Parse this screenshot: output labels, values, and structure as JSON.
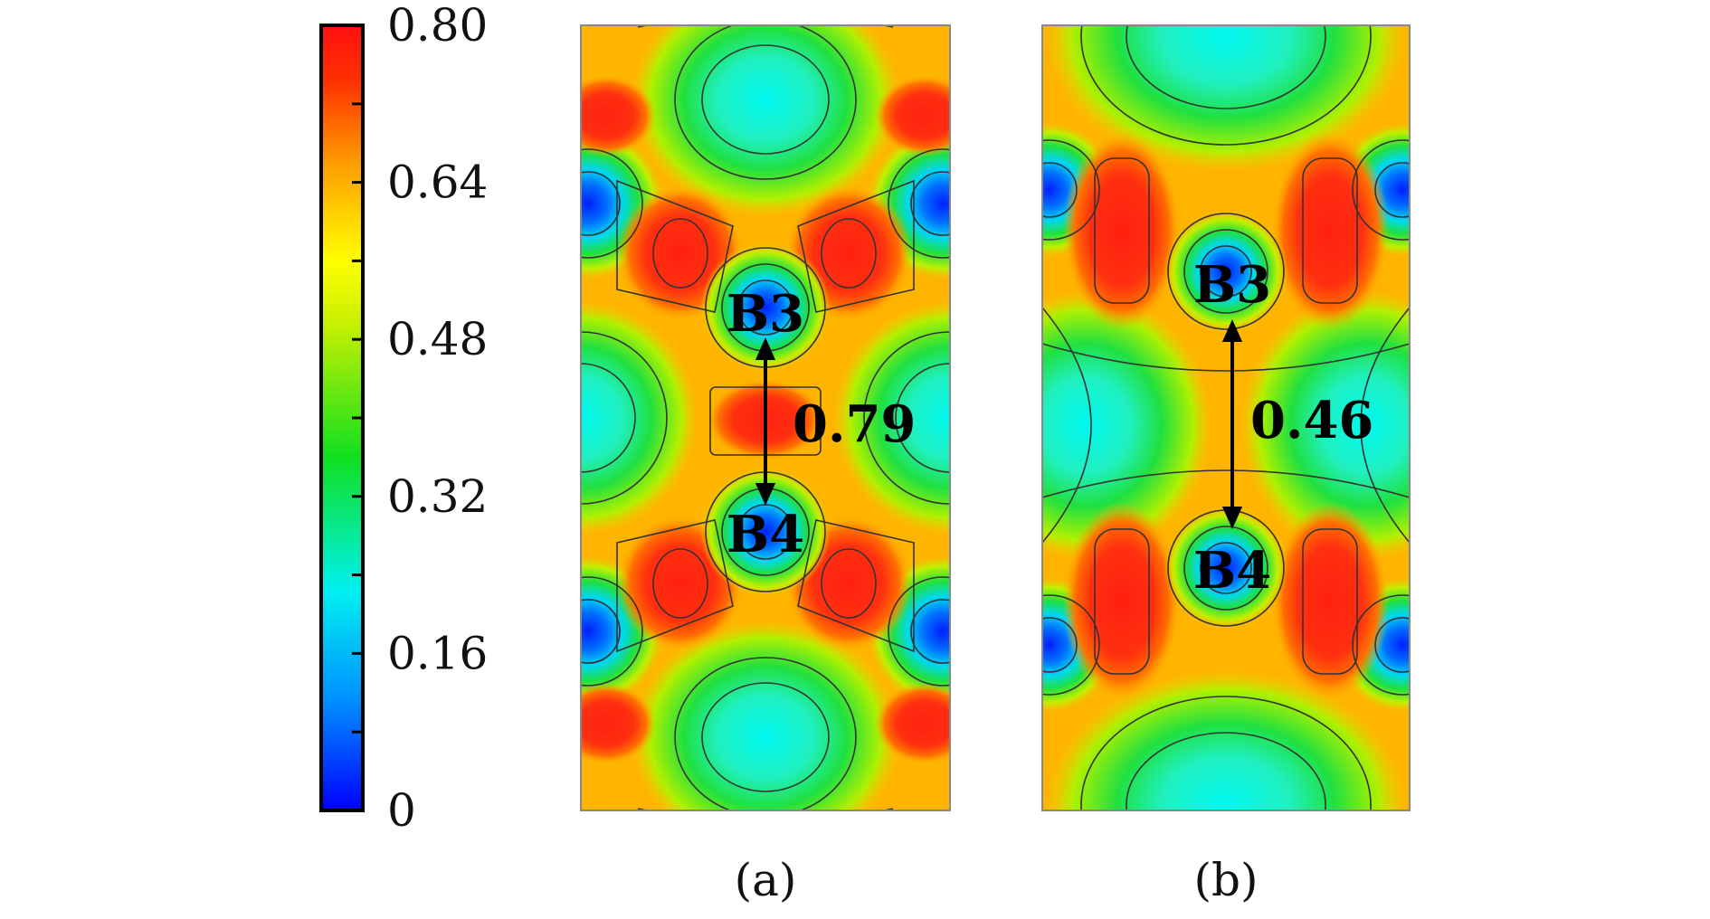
{
  "chart_data": {
    "type": "heatmap",
    "title": "",
    "colorbar": {
      "min": 0,
      "max": 0.8,
      "ticks": [
        {
          "value": 0.8,
          "label": "0.80"
        },
        {
          "value": 0.64,
          "label": "0.64"
        },
        {
          "value": 0.48,
          "label": "0.48"
        },
        {
          "value": 0.32,
          "label": "0.32"
        },
        {
          "value": 0.16,
          "label": "0.16"
        },
        {
          "value": 0,
          "label": "0"
        }
      ],
      "minor_tick_step": 0.08,
      "colormap": [
        "#0000ff",
        "#00a0ff",
        "#00ffee",
        "#10e010",
        "#ffff00",
        "#ffa000",
        "#ff2000",
        "#ff2010"
      ]
    },
    "panels": [
      {
        "caption": "(a)",
        "atoms": [
          {
            "label": "B3",
            "x": 0.5,
            "y": 0.36
          },
          {
            "label": "B4",
            "x": 0.5,
            "y": 0.64
          }
        ],
        "bond_value": "0.79"
      },
      {
        "caption": "(b)",
        "atoms": [
          {
            "label": "B3",
            "x": 0.5,
            "y": 0.32
          },
          {
            "label": "B4",
            "x": 0.5,
            "y": 0.69
          }
        ],
        "bond_value": "0.46"
      }
    ]
  }
}
